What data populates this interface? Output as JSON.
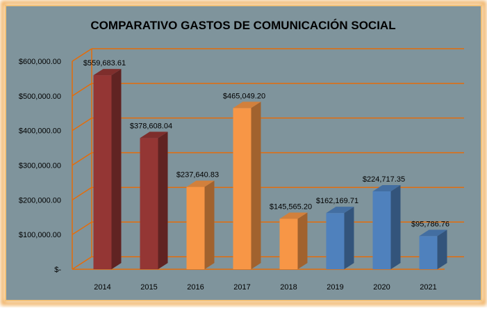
{
  "chart_data": {
    "type": "bar",
    "title": "COMPARATIVO GASTOS DE COMUNICACIÓN SOCIAL",
    "categories": [
      "2014",
      "2015",
      "2016",
      "2017",
      "2018",
      "2019",
      "2020",
      "2021"
    ],
    "values": [
      559683.61,
      378608.04,
      237640.83,
      465049.2,
      145565.2,
      162169.71,
      224717.35,
      95786.76
    ],
    "value_labels": [
      "$559,683.61",
      "$378,608.04",
      "$237,640.83",
      "$465,049.20",
      "$145,565.20",
      "$162,169.71",
      "$224,717.35",
      "$95,786.76"
    ],
    "bar_colors": [
      "#943634",
      "#943634",
      "#F79646",
      "#F79646",
      "#F79646",
      "#4F81BD",
      "#4F81BD",
      "#4F81BD"
    ],
    "ytick_values": [
      0,
      100000,
      200000,
      300000,
      400000,
      500000,
      600000
    ],
    "ytick_labels": [
      "$-",
      "$100,000.00",
      "$200,000.00",
      "$300,000.00",
      "$400,000.00",
      "$500,000.00",
      "$600,000.00"
    ],
    "ylim": [
      0,
      600000
    ],
    "grid": true,
    "legend": "none",
    "style": "3d-column",
    "background_color": "#7F949C",
    "gridline_color": "#E46C0A",
    "border_color": "#F0B060"
  }
}
